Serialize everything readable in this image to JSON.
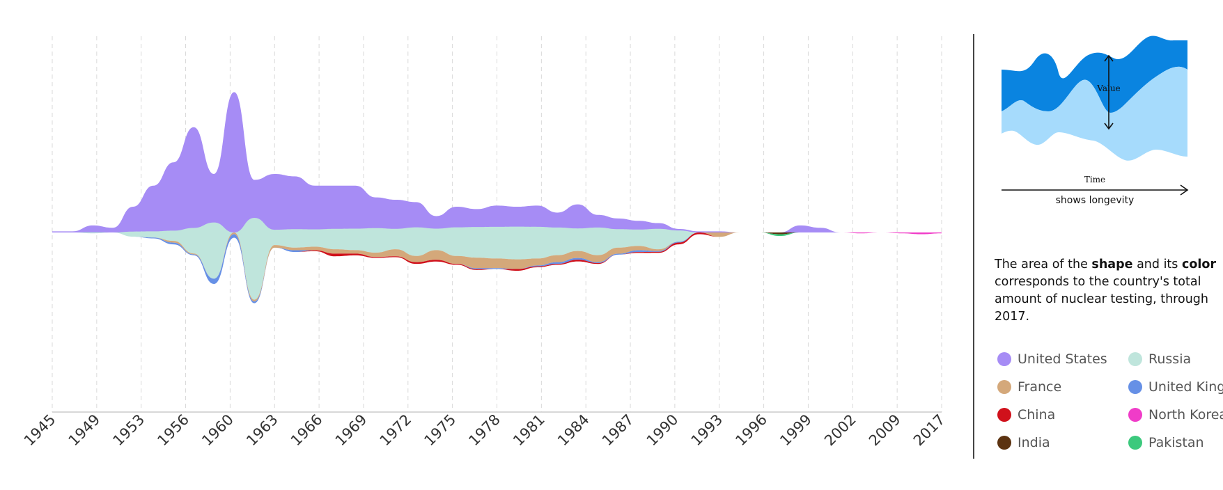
{
  "chart_data": {
    "type": "area",
    "subtype": "streamgraph",
    "title": "",
    "xlabel": "",
    "ylabel": "",
    "x_ticks": [
      "1945",
      "1949",
      "1953",
      "1956",
      "1960",
      "1963",
      "1966",
      "1969",
      "1972",
      "1975",
      "1978",
      "1981",
      "1984",
      "1987",
      "1990",
      "1993",
      "1996",
      "1999",
      "2002",
      "2009",
      "2017"
    ],
    "grid": "vertical dashed",
    "legend_placement": "right",
    "series": [
      {
        "name": "United States",
        "color": "#a68cf5",
        "values": [
          1,
          1,
          6,
          4,
          22,
          40,
          60,
          90,
          50,
          120,
          45,
          50,
          48,
          40,
          40,
          40,
          30,
          28,
          26,
          14,
          22,
          20,
          23,
          22,
          23,
          17,
          24,
          15,
          12,
          10,
          8,
          3,
          1,
          1,
          0,
          0,
          0,
          6,
          4,
          0,
          0,
          0,
          0,
          0,
          0
        ]
      },
      {
        "name": "Russia",
        "color": "#bfe5dc",
        "values": [
          0,
          0,
          1,
          0,
          5,
          6,
          10,
          25,
          55,
          0,
          80,
          15,
          18,
          17,
          20,
          21,
          24,
          20,
          28,
          21,
          28,
          30,
          31,
          32,
          31,
          27,
          22,
          27,
          18,
          16,
          20,
          11,
          0,
          0,
          0,
          0,
          0,
          0,
          0,
          0,
          0,
          0,
          0,
          0,
          0
        ]
      },
      {
        "name": "United Kingdom",
        "color": "#6690e6",
        "values": [
          0,
          0,
          0,
          0,
          0,
          1,
          2,
          1,
          6,
          4,
          2,
          0,
          2,
          0,
          0,
          0,
          0,
          0,
          0,
          0,
          0,
          1,
          1,
          0,
          1,
          2,
          2,
          1,
          1,
          2,
          1,
          1,
          0,
          0,
          0,
          0,
          0,
          0,
          0,
          0,
          0,
          0,
          0,
          0,
          0
        ]
      },
      {
        "name": "France",
        "color": "#d4a87a",
        "values": [
          0,
          0,
          0,
          0,
          0,
          0,
          2,
          1,
          0,
          2,
          2,
          3,
          3,
          4,
          5,
          4,
          5,
          8,
          7,
          11,
          9,
          12,
          11,
          11,
          8,
          8,
          8,
          8,
          7,
          5,
          2,
          0,
          0,
          5,
          0,
          0,
          0,
          0,
          0,
          0,
          0,
          0,
          0,
          0,
          0
        ]
      },
      {
        "name": "China",
        "color": "#d0111b",
        "values": [
          0,
          0,
          0,
          0,
          0,
          0,
          0,
          0,
          0,
          0,
          0,
          0,
          0,
          1,
          3,
          2,
          1,
          1,
          2,
          2,
          1,
          1,
          0,
          2,
          1,
          1,
          2,
          1,
          0,
          1,
          1,
          2,
          2,
          0,
          0,
          0,
          0,
          0,
          0,
          0,
          0,
          0,
          0,
          0,
          0
        ]
      },
      {
        "name": "North Korea",
        "color": "#f03cc8",
        "values": [
          0,
          0,
          0,
          0,
          0,
          0,
          0,
          0,
          0,
          0,
          0,
          0,
          0,
          0,
          0,
          0,
          0,
          0,
          0,
          0,
          0,
          0,
          0,
          0,
          0,
          0,
          0,
          0,
          0,
          0,
          0,
          0,
          0,
          0,
          0,
          0,
          0,
          0,
          0,
          0,
          1,
          0,
          1,
          2,
          1
        ]
      },
      {
        "name": "India",
        "color": "#5c3311",
        "values": [
          0,
          0,
          0,
          0,
          0,
          0,
          0,
          0,
          0,
          0,
          0,
          0,
          0,
          0,
          0,
          0,
          0,
          0,
          0,
          0,
          0,
          0,
          0,
          0,
          0,
          0,
          0,
          0,
          0,
          0,
          0,
          0,
          0,
          0,
          0,
          0,
          2,
          0,
          0,
          0,
          0,
          0,
          0,
          0,
          0
        ]
      },
      {
        "name": "Pakistan",
        "color": "#3cc97d",
        "values": [
          0,
          0,
          0,
          0,
          0,
          0,
          0,
          0,
          0,
          0,
          0,
          0,
          0,
          0,
          0,
          0,
          0,
          0,
          0,
          0,
          0,
          0,
          0,
          0,
          0,
          0,
          0,
          0,
          0,
          0,
          0,
          0,
          0,
          0,
          0,
          0,
          2,
          0,
          0,
          0,
          0,
          0,
          0,
          0,
          0
        ]
      }
    ]
  },
  "explain": {
    "part1": "The area of the ",
    "bold1": "shape",
    "part2": " and its ",
    "bold2": "color",
    "part3": " corresponds to the country's total amount of nuclear testing, through 2017."
  },
  "key": {
    "value_label": "Value",
    "time_label": "Time",
    "caption": "shows longevity",
    "dark_color": "#0a84e0",
    "light_color": "#a6dbfc"
  },
  "legend": [
    {
      "name": "United States",
      "color": "#a68cf5"
    },
    {
      "name": "Russia",
      "color": "#bfe5dc"
    },
    {
      "name": "France",
      "color": "#d4a87a"
    },
    {
      "name": "United Kingdom",
      "color": "#6690e6"
    },
    {
      "name": "China",
      "color": "#d0111b"
    },
    {
      "name": "North Korea",
      "color": "#f03cc8"
    },
    {
      "name": "India",
      "color": "#5c3311"
    },
    {
      "name": "Pakistan",
      "color": "#3cc97d"
    }
  ]
}
